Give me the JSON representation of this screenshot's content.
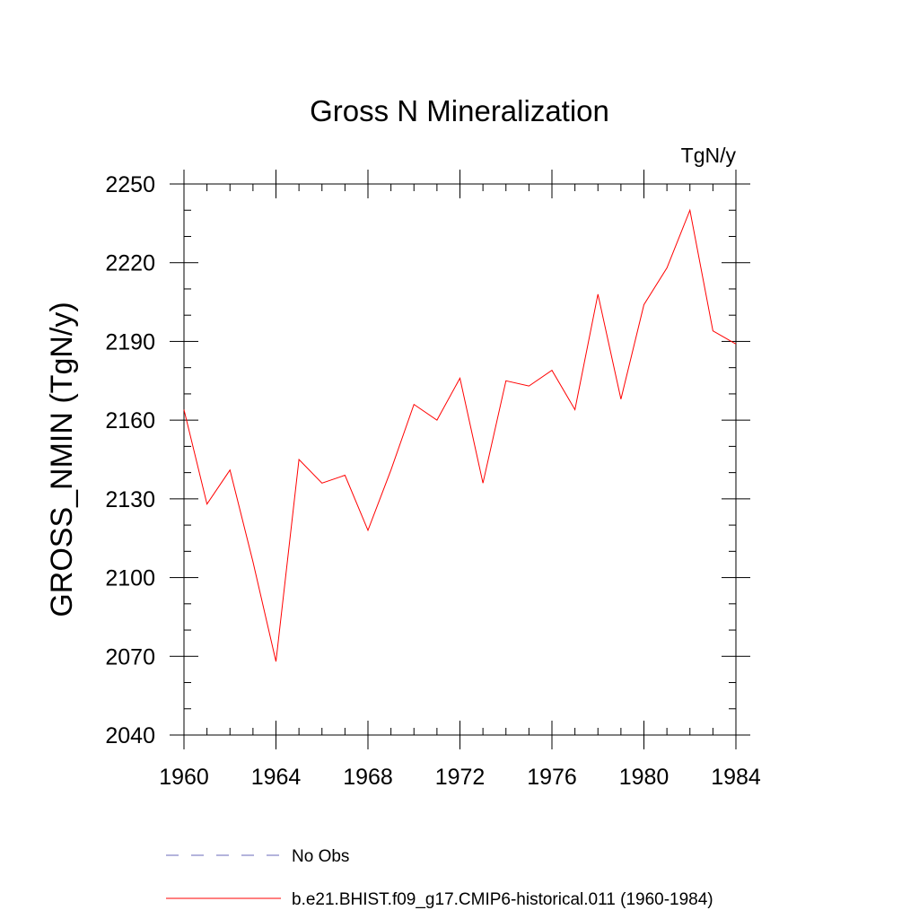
{
  "chart_data": {
    "type": "line",
    "title": "Gross N Mineralization",
    "units_label": "TgN/y",
    "xlabel": "",
    "ylabel": "GROSS_NMIN  (TgN/y)",
    "xlim": [
      1960,
      1984
    ],
    "ylim": [
      2040,
      2250
    ],
    "x_ticks": [
      "1960",
      "1964",
      "1968",
      "1972",
      "1976",
      "1980",
      "1984"
    ],
    "y_ticks": [
      "2040",
      "2070",
      "2100",
      "2130",
      "2160",
      "2190",
      "2220",
      "2250"
    ],
    "grid": false,
    "legend_position": "bottom",
    "series": [
      {
        "name": "No Obs",
        "color": "#6a6ab8",
        "line_style": "dashed",
        "x": [],
        "y": []
      },
      {
        "name": "b.e21.BHIST.f09_g17.CMIP6-historical.011 (1960-1984)",
        "color": "#ff0000",
        "line_style": "solid",
        "x": [
          1960,
          1961,
          1962,
          1963,
          1964,
          1965,
          1966,
          1967,
          1968,
          1969,
          1970,
          1971,
          1972,
          1973,
          1974,
          1975,
          1976,
          1977,
          1978,
          1979,
          1980,
          1981,
          1982,
          1983,
          1984
        ],
        "y": [
          2164,
          2128,
          2141,
          2106,
          2068,
          2145,
          2136,
          2139,
          2118,
          2141,
          2166,
          2160,
          2176,
          2136,
          2175,
          2173,
          2179,
          2164,
          2208,
          2168,
          2204,
          2218,
          2240,
          2194,
          2189
        ]
      }
    ]
  }
}
